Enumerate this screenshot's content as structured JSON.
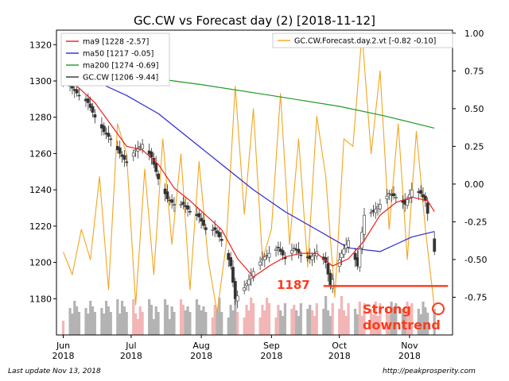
{
  "title": "GC.CW vs Forecast day (2)  [2018-11-12]",
  "footer_left": "Last update Nov 13, 2018",
  "footer_right": "http://peakprosperity.com",
  "colors": {
    "ma9": "#e8201a",
    "ma50": "#2a2ad6",
    "ma200": "#1f9a1f",
    "price": "#333333",
    "forecast": "#f2a521",
    "annotation": "#ff3a1a",
    "vol_up": "#f2b6b6",
    "vol_down": "#b3b3b3"
  },
  "chart_data": {
    "type": "line",
    "title": "GC.CW vs Forecast day (2)  [2018-11-12]",
    "x_range": [
      "2018-05-29",
      "2018-11-20"
    ],
    "ylim_left": [
      1160,
      1328
    ],
    "ylim_right": [
      -1.0,
      1.02
    ],
    "y_ticks_left": [
      "1320",
      "1300",
      "1280",
      "1260",
      "1240",
      "1220",
      "1200",
      "1180"
    ],
    "y_ticks_right": [
      "1.00",
      "0.75",
      "0.50",
      "0.25",
      "0.00",
      "-0.25",
      "-0.50",
      "-0.75"
    ],
    "x_ticks": [
      {
        "date": "2018-06-01",
        "label": "Jun",
        "year": "2018"
      },
      {
        "date": "2018-07-01",
        "label": "Jul",
        "year": "2018"
      },
      {
        "date": "2018-08-01",
        "label": "Aug",
        "year": "2018"
      },
      {
        "date": "2018-09-01",
        "label": "Sep",
        "year": "2018"
      },
      {
        "date": "2018-10-01",
        "label": "Oct",
        "year": "2018"
      },
      {
        "date": "2018-11-01",
        "label": "Nov",
        "year": "2018"
      }
    ],
    "legend_left": [
      {
        "name": "ma9 [1228 -2.57]",
        "color_key": "ma9"
      },
      {
        "name": "ma50 [1217 -0.05]",
        "color_key": "ma50"
      },
      {
        "name": "ma200 [1274 -0.69]",
        "color_key": "ma200"
      },
      {
        "name": "GC.CW [1206 -9.44]",
        "color_key": "price"
      }
    ],
    "legend_right": [
      {
        "name": "GC.CW.Forecast.day.2.vt [-0.82 -0.10]",
        "color_key": "forecast"
      }
    ],
    "close_points": [
      [
        "2018-06-01",
        1300
      ],
      [
        "2018-06-05",
        1296
      ],
      [
        "2018-06-08",
        1292
      ],
      [
        "2018-06-12",
        1288
      ],
      [
        "2018-06-15",
        1280
      ],
      [
        "2018-06-19",
        1272
      ],
      [
        "2018-06-22",
        1268
      ],
      [
        "2018-06-26",
        1260
      ],
      [
        "2018-06-29",
        1255
      ],
      [
        "2018-07-03",
        1262
      ],
      [
        "2018-07-06",
        1265
      ],
      [
        "2018-07-10",
        1258
      ],
      [
        "2018-07-13",
        1246
      ],
      [
        "2018-07-17",
        1235
      ],
      [
        "2018-07-20",
        1232
      ],
      [
        "2018-07-24",
        1232
      ],
      [
        "2018-07-27",
        1228
      ],
      [
        "2018-07-31",
        1225
      ],
      [
        "2018-08-03",
        1218
      ],
      [
        "2018-08-07",
        1218
      ],
      [
        "2018-08-10",
        1212
      ],
      [
        "2018-08-14",
        1198
      ],
      [
        "2018-08-16",
        1180
      ],
      [
        "2018-08-20",
        1186
      ],
      [
        "2018-08-24",
        1195
      ],
      [
        "2018-08-28",
        1202
      ],
      [
        "2018-08-31",
        1205
      ],
      [
        "2018-09-04",
        1208
      ],
      [
        "2018-09-07",
        1202
      ],
      [
        "2018-09-11",
        1208
      ],
      [
        "2018-09-14",
        1204
      ],
      [
        "2018-09-18",
        1202
      ],
      [
        "2018-09-21",
        1206
      ],
      [
        "2018-09-25",
        1200
      ],
      [
        "2018-09-27",
        1187
      ],
      [
        "2018-10-02",
        1205
      ],
      [
        "2018-10-05",
        1212
      ],
      [
        "2018-10-09",
        1198
      ],
      [
        "2018-10-12",
        1226
      ],
      [
        "2018-10-16",
        1228
      ],
      [
        "2018-10-19",
        1232
      ],
      [
        "2018-10-23",
        1238
      ],
      [
        "2018-10-26",
        1236
      ],
      [
        "2018-10-30",
        1232
      ],
      [
        "2018-11-02",
        1240
      ],
      [
        "2018-11-06",
        1238
      ],
      [
        "2018-11-08",
        1234
      ],
      [
        "2018-11-12",
        1206
      ]
    ],
    "ma9_points": [
      [
        "2018-06-01",
        1303
      ],
      [
        "2018-06-08",
        1296
      ],
      [
        "2018-06-15",
        1288
      ],
      [
        "2018-06-22",
        1276
      ],
      [
        "2018-06-29",
        1264
      ],
      [
        "2018-07-06",
        1262
      ],
      [
        "2018-07-13",
        1254
      ],
      [
        "2018-07-20",
        1241
      ],
      [
        "2018-07-27",
        1234
      ],
      [
        "2018-08-03",
        1226
      ],
      [
        "2018-08-10",
        1218
      ],
      [
        "2018-08-17",
        1202
      ],
      [
        "2018-08-24",
        1192
      ],
      [
        "2018-08-31",
        1198
      ],
      [
        "2018-09-07",
        1203
      ],
      [
        "2018-09-14",
        1205
      ],
      [
        "2018-09-21",
        1205
      ],
      [
        "2018-09-28",
        1198
      ],
      [
        "2018-10-05",
        1202
      ],
      [
        "2018-10-12",
        1212
      ],
      [
        "2018-10-19",
        1226
      ],
      [
        "2018-10-26",
        1233
      ],
      [
        "2018-11-02",
        1236
      ],
      [
        "2018-11-09",
        1234
      ],
      [
        "2018-11-12",
        1228
      ]
    ],
    "ma50_points": [
      [
        "2018-06-01",
        1306
      ],
      [
        "2018-06-15",
        1300
      ],
      [
        "2018-06-29",
        1292
      ],
      [
        "2018-07-13",
        1282
      ],
      [
        "2018-07-27",
        1268
      ],
      [
        "2018-08-10",
        1254
      ],
      [
        "2018-08-24",
        1240
      ],
      [
        "2018-09-07",
        1228
      ],
      [
        "2018-09-21",
        1218
      ],
      [
        "2018-10-05",
        1208
      ],
      [
        "2018-10-19",
        1206
      ],
      [
        "2018-11-02",
        1214
      ],
      [
        "2018-11-12",
        1217
      ]
    ],
    "ma200_points": [
      [
        "2018-07-02",
        1303
      ],
      [
        "2018-08-01",
        1298
      ],
      [
        "2018-09-01",
        1292
      ],
      [
        "2018-10-01",
        1286
      ],
      [
        "2018-10-20",
        1281
      ],
      [
        "2018-11-12",
        1274
      ]
    ],
    "forecast_points": [
      [
        "2018-06-01",
        -0.45
      ],
      [
        "2018-06-05",
        -0.6
      ],
      [
        "2018-06-09",
        -0.3
      ],
      [
        "2018-06-13",
        -0.5
      ],
      [
        "2018-06-17",
        0.05
      ],
      [
        "2018-06-21",
        -0.7
      ],
      [
        "2018-06-25",
        0.4
      ],
      [
        "2018-06-29",
        0.2
      ],
      [
        "2018-07-03",
        -0.8
      ],
      [
        "2018-07-07",
        0.1
      ],
      [
        "2018-07-11",
        -0.6
      ],
      [
        "2018-07-15",
        0.3
      ],
      [
        "2018-07-19",
        -0.4
      ],
      [
        "2018-07-23",
        0.2
      ],
      [
        "2018-07-27",
        -0.7
      ],
      [
        "2018-07-31",
        0.15
      ],
      [
        "2018-08-04",
        -0.5
      ],
      [
        "2018-08-08",
        -0.85
      ],
      [
        "2018-08-12",
        -0.4
      ],
      [
        "2018-08-16",
        0.65
      ],
      [
        "2018-08-20",
        -0.2
      ],
      [
        "2018-08-24",
        0.5
      ],
      [
        "2018-08-28",
        -0.5
      ],
      [
        "2018-09-01",
        -0.3
      ],
      [
        "2018-09-05",
        0.6
      ],
      [
        "2018-09-09",
        -0.4
      ],
      [
        "2018-09-13",
        0.3
      ],
      [
        "2018-09-17",
        -0.55
      ],
      [
        "2018-09-21",
        0.45
      ],
      [
        "2018-09-25",
        0.05
      ],
      [
        "2018-09-29",
        -0.75
      ],
      [
        "2018-10-03",
        0.3
      ],
      [
        "2018-10-07",
        0.25
      ],
      [
        "2018-10-11",
        1.0
      ],
      [
        "2018-10-15",
        0.2
      ],
      [
        "2018-10-19",
        0.75
      ],
      [
        "2018-10-23",
        -0.3
      ],
      [
        "2018-10-27",
        0.4
      ],
      [
        "2018-10-31",
        -0.5
      ],
      [
        "2018-11-04",
        0.35
      ],
      [
        "2018-11-08",
        -0.3
      ],
      [
        "2018-11-12",
        -0.82
      ]
    ],
    "annotations": {
      "level_label": "1187",
      "level_value": 1187,
      "level_from": "2018-09-24",
      "level_to": "2018-11-18",
      "text_lines": [
        "Strong",
        "downtrend"
      ]
    },
    "grid": false,
    "legend_left_placement": "top-left",
    "legend_right_placement": "top-right"
  }
}
